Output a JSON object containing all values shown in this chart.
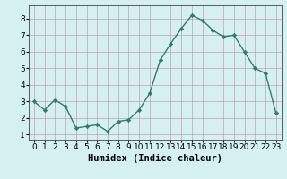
{
  "x": [
    0,
    1,
    2,
    3,
    4,
    5,
    6,
    7,
    8,
    9,
    10,
    11,
    12,
    13,
    14,
    15,
    16,
    17,
    18,
    19,
    20,
    21,
    22,
    23
  ],
  "y": [
    3.0,
    2.5,
    3.1,
    2.7,
    1.4,
    1.5,
    1.6,
    1.2,
    1.8,
    1.9,
    2.5,
    3.5,
    5.5,
    6.5,
    7.4,
    8.2,
    7.9,
    7.3,
    6.9,
    7.0,
    6.0,
    5.0,
    4.7,
    2.3
  ],
  "line_color": "#2e7d6e",
  "marker": "D",
  "marker_size": 2.2,
  "bg_color": "#d4f0f0",
  "grid_color": "#c8a0a8",
  "xlabel": "Humidex (Indice chaleur)",
  "ylim": [
    0.7,
    8.8
  ],
  "xlim": [
    -0.5,
    23.5
  ],
  "yticks": [
    1,
    2,
    3,
    4,
    5,
    6,
    7,
    8
  ],
  "xticks": [
    0,
    1,
    2,
    3,
    4,
    5,
    6,
    7,
    8,
    9,
    10,
    11,
    12,
    13,
    14,
    15,
    16,
    17,
    18,
    19,
    20,
    21,
    22,
    23
  ],
  "xlabel_fontsize": 7.5,
  "tick_fontsize": 6.5,
  "line_width": 1.0
}
